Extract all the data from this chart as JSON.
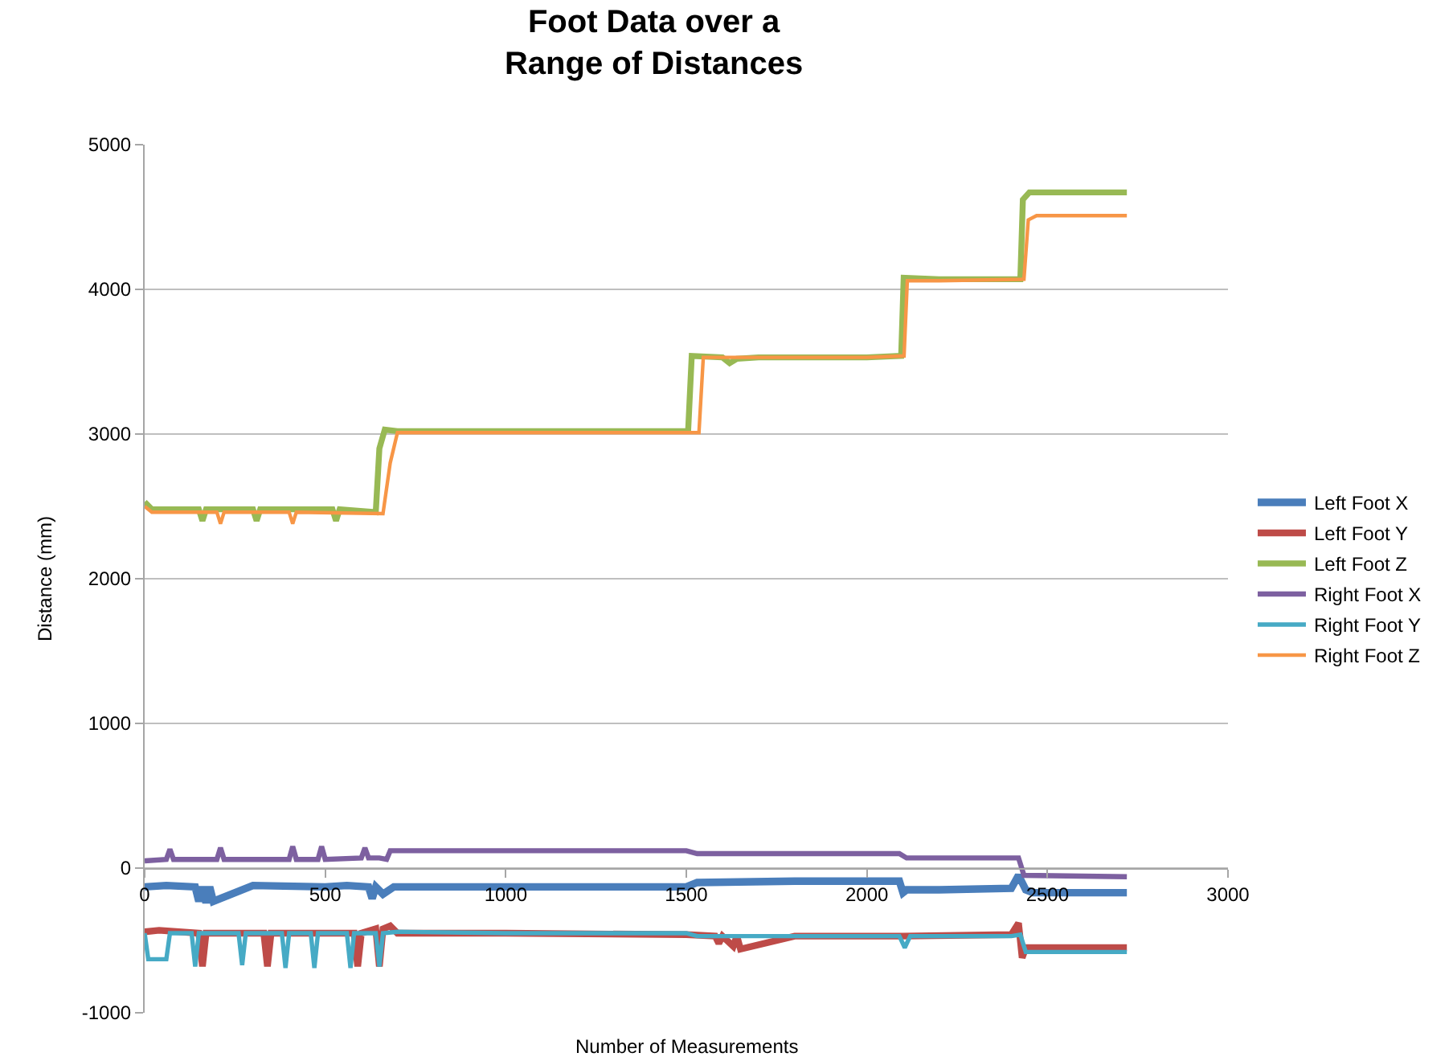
{
  "chart_data": {
    "type": "line",
    "title": "Foot Data over a\nRange of Distances",
    "xlabel": "Number of Measurements",
    "ylabel": "Distance (mm)",
    "xlim": [
      0,
      3000
    ],
    "xticks": [
      0,
      500,
      1000,
      1500,
      2000,
      2500,
      3000
    ],
    "ylim": [
      -1000,
      5000
    ],
    "yticks": [
      -1000,
      0,
      1000,
      2000,
      3000,
      4000,
      5000
    ],
    "grid": "y",
    "legend": "right",
    "marker": "none",
    "line_style": "solid",
    "series": [
      {
        "name": "Left Foot X",
        "color": "#4a7ebb",
        "x": [
          0,
          60,
          140,
          150,
          160,
          170,
          180,
          190,
          300,
          500,
          560,
          620,
          630,
          640,
          660,
          690,
          1000,
          1500,
          1530,
          1800,
          2090,
          2100,
          2110,
          2200,
          2400,
          2420,
          2440,
          2460,
          2720
        ],
        "values": [
          -130,
          -120,
          -130,
          -230,
          -130,
          -240,
          -130,
          -230,
          -120,
          -130,
          -120,
          -130,
          -210,
          -130,
          -180,
          -130,
          -130,
          -130,
          -100,
          -90,
          -90,
          -170,
          -150,
          -150,
          -140,
          -50,
          -150,
          -170,
          -170
        ]
      },
      {
        "name": "Left Foot Y",
        "color": "#be4b48",
        "x": [
          0,
          40,
          150,
          160,
          170,
          330,
          340,
          350,
          580,
          590,
          600,
          640,
          650,
          660,
          680,
          700,
          1000,
          1500,
          1580,
          1590,
          1600,
          1630,
          1640,
          1650,
          1800,
          2100,
          2400,
          2420,
          2430,
          2440,
          2720
        ],
        "values": [
          -440,
          -430,
          -450,
          -680,
          -450,
          -450,
          -680,
          -450,
          -450,
          -680,
          -450,
          -420,
          -680,
          -420,
          -400,
          -450,
          -450,
          -460,
          -470,
          -520,
          -470,
          -540,
          -470,
          -560,
          -470,
          -470,
          -460,
          -380,
          -620,
          -550,
          -550
        ]
      },
      {
        "name": "Left Foot Z",
        "color": "#98b954",
        "x": [
          0,
          20,
          150,
          160,
          170,
          300,
          310,
          320,
          520,
          530,
          540,
          640,
          650,
          665,
          700,
          1000,
          1505,
          1515,
          1600,
          1620,
          1640,
          1700,
          2000,
          2095,
          2102,
          2200,
          2425,
          2432,
          2450,
          2720
        ],
        "values": [
          2530,
          2480,
          2480,
          2400,
          2480,
          2480,
          2400,
          2480,
          2480,
          2400,
          2480,
          2460,
          2900,
          3030,
          3020,
          3020,
          3020,
          3540,
          3530,
          3490,
          3520,
          3530,
          3530,
          3540,
          4080,
          4070,
          4070,
          4620,
          4670,
          4670
        ]
      },
      {
        "name": "Right Foot X",
        "color": "#7d60a0",
        "x": [
          0,
          60,
          70,
          80,
          200,
          210,
          220,
          400,
          410,
          420,
          480,
          490,
          500,
          600,
          610,
          620,
          650,
          670,
          680,
          1000,
          1500,
          1530,
          1800,
          2090,
          2110,
          2400,
          2420,
          2435,
          2720
        ],
        "values": [
          50,
          60,
          130,
          60,
          60,
          140,
          60,
          60,
          150,
          60,
          60,
          150,
          60,
          70,
          140,
          70,
          70,
          60,
          120,
          120,
          120,
          100,
          100,
          100,
          70,
          70,
          70,
          -50,
          -60
        ]
      },
      {
        "name": "Right Foot Y",
        "color": "#46aac5",
        "x": [
          0,
          10,
          60,
          70,
          130,
          140,
          150,
          260,
          270,
          280,
          380,
          390,
          400,
          460,
          470,
          480,
          560,
          570,
          580,
          640,
          650,
          660,
          700,
          1000,
          1500,
          1530,
          2090,
          2105,
          2120,
          2400,
          2425,
          2440,
          2720
        ],
        "values": [
          -450,
          -630,
          -630,
          -450,
          -450,
          -680,
          -450,
          -450,
          -670,
          -450,
          -450,
          -690,
          -450,
          -450,
          -690,
          -450,
          -450,
          -690,
          -450,
          -450,
          -680,
          -450,
          -440,
          -450,
          -450,
          -470,
          -470,
          -550,
          -470,
          -470,
          -460,
          -580,
          -580
        ]
      },
      {
        "name": "Right Foot Z",
        "color": "#f79646",
        "x": [
          0,
          20,
          200,
          210,
          220,
          400,
          410,
          420,
          660,
          680,
          700,
          1000,
          1535,
          1547,
          1600,
          2000,
          2103,
          2112,
          2200,
          2435,
          2447,
          2470,
          2720
        ],
        "values": [
          2500,
          2460,
          2460,
          2380,
          2460,
          2460,
          2380,
          2460,
          2450,
          2800,
          3010,
          3010,
          3010,
          3530,
          3530,
          3530,
          3540,
          4060,
          4060,
          4070,
          4480,
          4510,
          4510
        ]
      }
    ]
  }
}
